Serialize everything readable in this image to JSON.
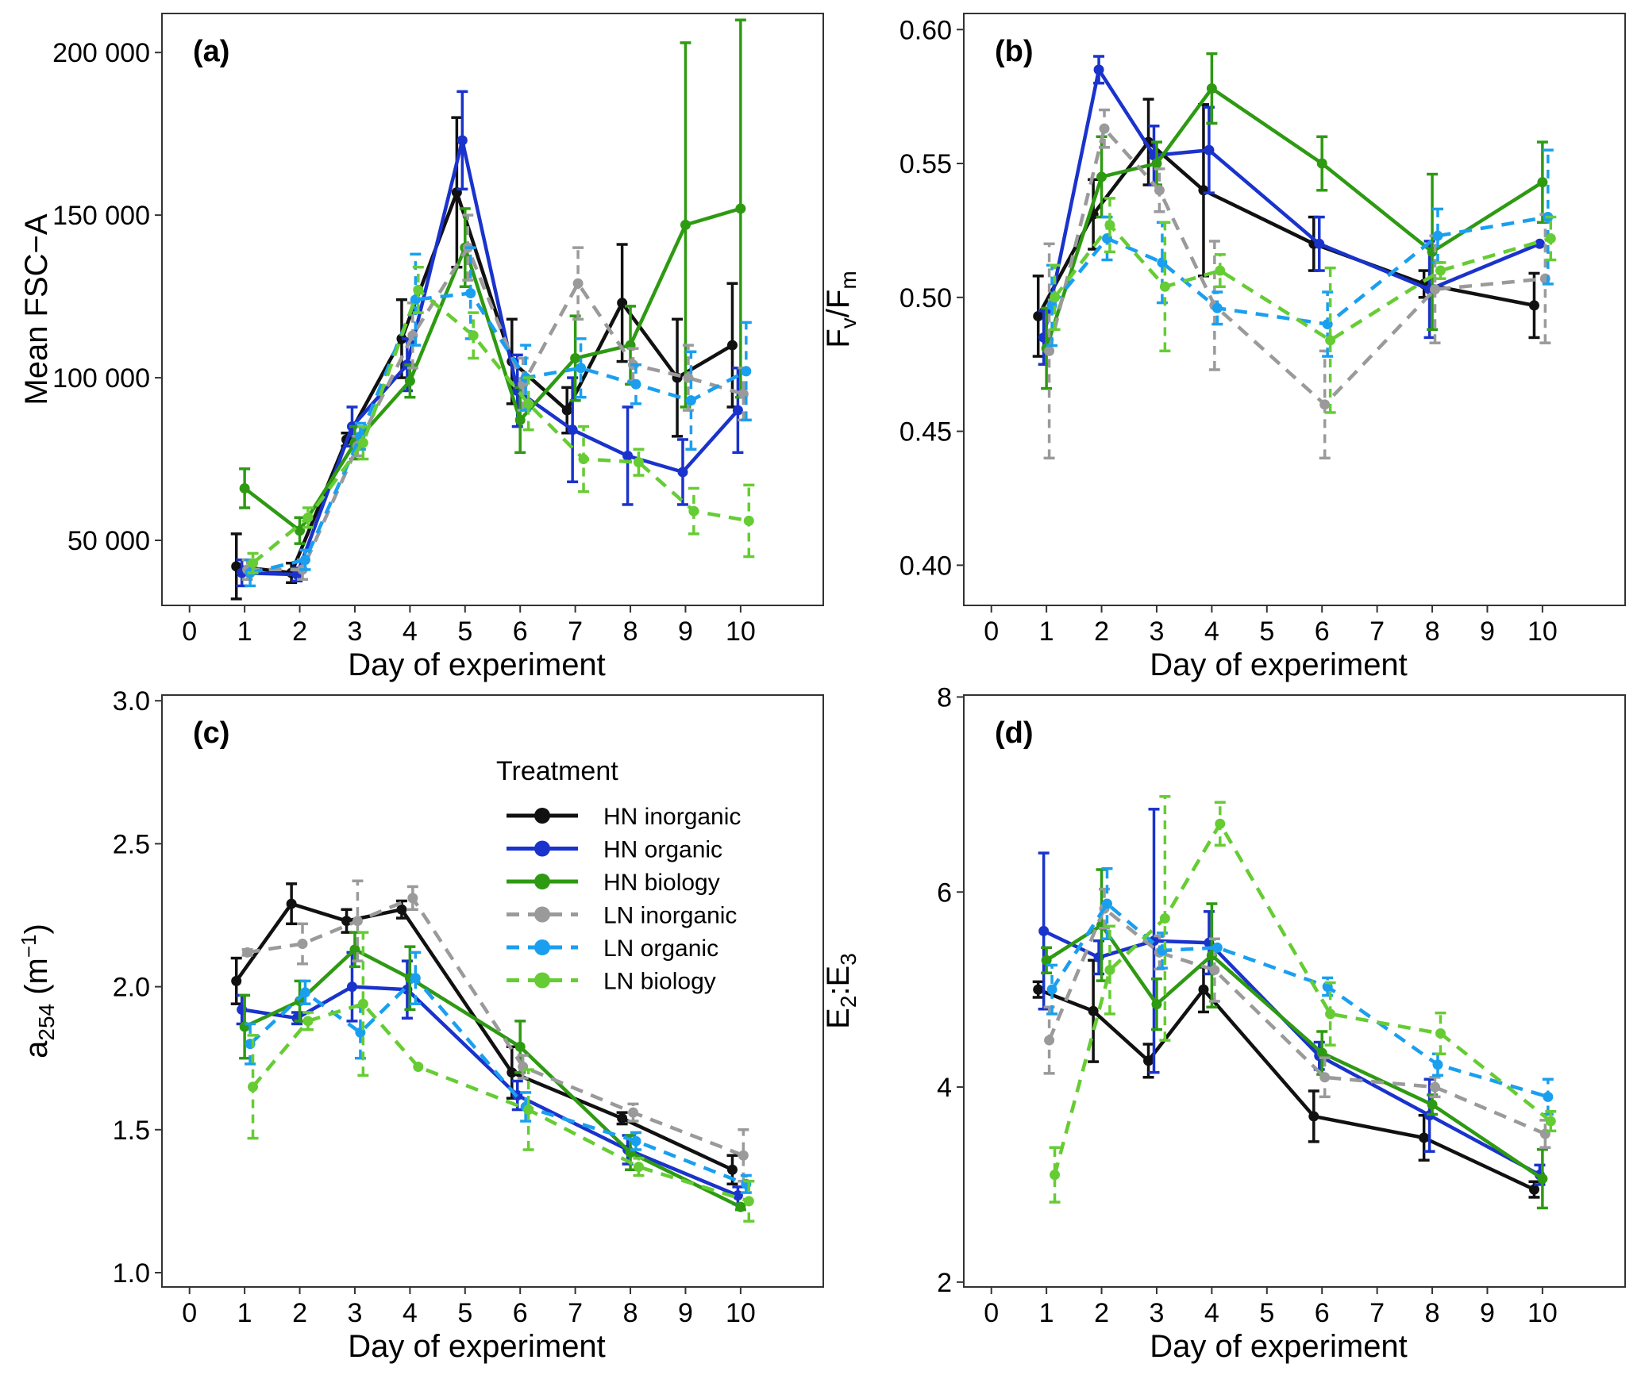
{
  "chart_data": [
    {
      "type": "line",
      "panel_label": "(a)",
      "xlabel": "Day of experiment",
      "ylabel": "Mean FSC−A",
      "xlim": [
        -0.5,
        11.5
      ],
      "ylim": [
        30000,
        212000
      ],
      "xticks": [
        0,
        1,
        2,
        3,
        4,
        5,
        6,
        7,
        8,
        9,
        10
      ],
      "yticks": [
        50000,
        100000,
        150000,
        200000
      ],
      "ytick_labels": [
        "50 000",
        "100 000",
        "150 000",
        "200 000"
      ],
      "series": [
        {
          "name": "HN inorganic",
          "x": [
            0.85,
            1.85,
            2.85,
            3.85,
            4.85,
            5.85,
            6.85,
            7.85,
            8.85,
            9.85
          ],
          "y": [
            42000,
            40000,
            81000,
            112000,
            157000,
            105000,
            90000,
            123000,
            100000,
            110000
          ],
          "err": [
            10000,
            3000,
            2000,
            12000,
            23000,
            13000,
            7000,
            18000,
            18000,
            19000
          ]
        },
        {
          "name": "HN organic",
          "x": [
            0.95,
            1.95,
            2.95,
            3.95,
            4.95,
            5.95,
            6.95,
            7.95,
            8.95,
            9.95
          ],
          "y": [
            40000,
            39500,
            85000,
            104000,
            173000,
            96000,
            84000,
            76000,
            71000,
            90000
          ],
          "err": [
            4000,
            2000,
            6000,
            8000,
            15000,
            11000,
            16000,
            15000,
            10000,
            13000
          ]
        },
        {
          "name": "HN biology",
          "x": [
            1.0,
            2.0,
            3.0,
            4.0,
            5.0,
            6.0,
            7.0,
            8.0,
            9.0,
            10.0
          ],
          "y": [
            66000,
            53000,
            80000,
            99000,
            140000,
            87000,
            106000,
            110000,
            147000,
            152000
          ],
          "err": [
            6000,
            4000,
            5000,
            5000,
            12000,
            10000,
            13000,
            12000,
            56000,
            58000
          ]
        },
        {
          "name": "LN inorganic",
          "x": [
            1.05,
            2.05,
            3.05,
            4.05,
            5.05,
            6.05,
            7.05,
            8.05,
            9.05,
            10.05
          ],
          "y": [
            41000,
            41000,
            79000,
            113000,
            140000,
            98000,
            129000,
            104000,
            100000,
            95000
          ],
          "err": [
            3000,
            3000,
            3000,
            10000,
            10000,
            8000,
            11000,
            5000,
            10000,
            8000
          ]
        },
        {
          "name": "LN organic",
          "x": [
            1.1,
            2.1,
            3.1,
            4.1,
            5.1,
            6.1,
            7.1,
            8.1,
            9.1,
            10.1
          ],
          "y": [
            40000,
            44000,
            82000,
            124000,
            126000,
            100000,
            103000,
            98000,
            93000,
            102000
          ],
          "err": [
            4000,
            3000,
            4000,
            14000,
            14000,
            10000,
            9000,
            6000,
            15000,
            15000
          ]
        },
        {
          "name": "LN biology",
          "x": [
            1.15,
            2.15,
            3.15,
            4.15,
            5.15,
            6.15,
            7.15,
            8.15,
            9.15,
            10.15
          ],
          "y": [
            43000,
            57000,
            80000,
            127000,
            113000,
            92000,
            75000,
            74000,
            59000,
            56000
          ],
          "err": [
            3000,
            3000,
            5000,
            7000,
            7000,
            8000,
            10000,
            4000,
            7000,
            11000
          ]
        }
      ]
    },
    {
      "type": "line",
      "panel_label": "(b)",
      "xlabel": "Day of experiment",
      "ylabel": "Fv/Fm",
      "xlim": [
        -0.5,
        11.5
      ],
      "ylim": [
        0.385,
        0.606
      ],
      "xticks": [
        0,
        1,
        2,
        3,
        4,
        5,
        6,
        7,
        8,
        9,
        10
      ],
      "yticks": [
        0.4,
        0.45,
        0.5,
        0.55,
        0.6
      ],
      "ytick_labels": [
        "0.40",
        "0.45",
        "0.50",
        "0.55",
        "0.60"
      ],
      "series": [
        {
          "name": "HN inorganic",
          "x": [
            0.85,
            1.85,
            2.85,
            3.85,
            5.85,
            7.85,
            9.85
          ],
          "y": [
            0.493,
            0.531,
            0.558,
            0.54,
            0.52,
            0.505,
            0.497
          ],
          "err": [
            0.015,
            0.013,
            0.016,
            0.032,
            0.01,
            0.005,
            0.012
          ]
        },
        {
          "name": "HN organic",
          "x": [
            0.95,
            1.95,
            2.95,
            3.95,
            5.95,
            7.95,
            9.95
          ],
          "y": [
            0.485,
            0.585,
            0.553,
            0.555,
            0.52,
            0.503,
            0.52
          ],
          "err": [
            0.01,
            0.005,
            0.011,
            0.016,
            0.01,
            0.018,
            0.0
          ]
        },
        {
          "name": "HN biology",
          "x": [
            1.0,
            2.0,
            3.0,
            4.0,
            6.0,
            8.0,
            10.0
          ],
          "y": [
            0.481,
            0.545,
            0.55,
            0.578,
            0.55,
            0.517,
            0.543
          ],
          "err": [
            0.015,
            0.015,
            0.008,
            0.013,
            0.01,
            0.029,
            0.015
          ]
        },
        {
          "name": "LN inorganic",
          "x": [
            1.05,
            2.05,
            3.05,
            4.05,
            6.05,
            8.05,
            10.05
          ],
          "y": [
            0.48,
            0.563,
            0.54,
            0.497,
            0.46,
            0.503,
            0.507
          ],
          "err": [
            0.04,
            0.007,
            0.008,
            0.024,
            0.02,
            0.02,
            0.024
          ]
        },
        {
          "name": "LN organic",
          "x": [
            1.1,
            2.1,
            3.1,
            4.1,
            6.1,
            8.1,
            10.1
          ],
          "y": [
            0.497,
            0.522,
            0.513,
            0.496,
            0.49,
            0.523,
            0.53
          ],
          "err": [
            0.015,
            0.008,
            0.015,
            0.006,
            0.012,
            0.01,
            0.025
          ]
        },
        {
          "name": "LN biology",
          "x": [
            1.15,
            2.15,
            3.15,
            4.15,
            6.15,
            8.15,
            10.15
          ],
          "y": [
            0.5,
            0.527,
            0.504,
            0.51,
            0.484,
            0.51,
            0.522
          ],
          "err": [
            0.012,
            0.01,
            0.024,
            0.006,
            0.027,
            0.003,
            0.008
          ]
        }
      ]
    },
    {
      "type": "line",
      "panel_label": "(c)",
      "xlabel": "Day of experiment",
      "ylabel": "a254 (m−1)",
      "xlim": [
        -0.5,
        11.5
      ],
      "ylim": [
        0.95,
        3.02
      ],
      "xticks": [
        0,
        1,
        2,
        3,
        4,
        5,
        6,
        7,
        8,
        9,
        10
      ],
      "yticks": [
        1.0,
        1.5,
        2.0,
        2.5,
        3.0
      ],
      "ytick_labels": [
        "1.0",
        "1.5",
        "2.0",
        "2.5",
        "3.0"
      ],
      "series": [
        {
          "name": "HN inorganic",
          "x": [
            0.85,
            1.85,
            2.85,
            3.85,
            5.85,
            7.85,
            9.85
          ],
          "y": [
            2.02,
            2.29,
            2.23,
            2.27,
            1.7,
            1.54,
            1.36
          ],
          "err": [
            0.08,
            0.07,
            0.04,
            0.03,
            0.09,
            0.02,
            0.05
          ]
        },
        {
          "name": "HN organic",
          "x": [
            0.95,
            1.95,
            2.95,
            3.95,
            5.95,
            7.95,
            9.95
          ],
          "y": [
            1.92,
            1.89,
            2.0,
            1.99,
            1.62,
            1.43,
            1.27
          ],
          "err": [
            0.05,
            0.02,
            0.12,
            0.1,
            0.05,
            0.05,
            0.03
          ]
        },
        {
          "name": "HN biology",
          "x": [
            1.0,
            2.0,
            3.0,
            4.0,
            6.0,
            8.0,
            10.0
          ],
          "y": [
            1.86,
            1.95,
            2.13,
            2.03,
            1.79,
            1.42,
            1.23
          ],
          "err": [
            0.11,
            0.07,
            0.06,
            0.11,
            0.09,
            0.06,
            0.01
          ]
        },
        {
          "name": "LN inorganic",
          "x": [
            1.05,
            2.05,
            3.05,
            4.05,
            6.05,
            8.05,
            10.05
          ],
          "y": [
            2.12,
            2.15,
            2.23,
            2.31,
            1.72,
            1.56,
            1.41
          ],
          "err": [
            0.01,
            0.07,
            0.14,
            0.04,
            0.04,
            0.03,
            0.09
          ]
        },
        {
          "name": "LN organic",
          "x": [
            1.1,
            2.1,
            3.1,
            4.1,
            6.1,
            8.1,
            10.1
          ],
          "y": [
            1.8,
            1.98,
            1.84,
            2.03,
            1.58,
            1.46,
            1.31
          ],
          "err": [
            0.07,
            0.04,
            0.09,
            0.09,
            0.05,
            0.03,
            0.03
          ]
        },
        {
          "name": "LN biology",
          "x": [
            1.15,
            2.15,
            3.15,
            4.15,
            6.15,
            8.15,
            10.15
          ],
          "y": [
            1.65,
            1.88,
            1.94,
            1.72,
            1.57,
            1.37,
            1.25
          ],
          "err": [
            0.18,
            0.03,
            0.25,
            0.0,
            0.14,
            0.03,
            0.07
          ]
        }
      ]
    },
    {
      "type": "line",
      "panel_label": "(d)",
      "xlabel": "Day of experiment",
      "ylabel": "E2:E3",
      "xlim": [
        -0.5,
        11.5
      ],
      "ylim": [
        1.95,
        8.02
      ],
      "xticks": [
        0,
        1,
        2,
        3,
        4,
        5,
        6,
        7,
        8,
        9,
        10
      ],
      "yticks": [
        2,
        4,
        6,
        8
      ],
      "ytick_labels": [
        "2",
        "4",
        "6",
        "8"
      ],
      "series": [
        {
          "name": "HN inorganic",
          "x": [
            0.85,
            1.85,
            2.85,
            3.85,
            5.85,
            7.85,
            9.85
          ],
          "y": [
            5.0,
            4.78,
            4.27,
            5.0,
            3.7,
            3.48,
            2.95
          ],
          "err": [
            0.08,
            0.52,
            0.17,
            0.23,
            0.26,
            0.23,
            0.08
          ]
        },
        {
          "name": "HN organic",
          "x": [
            0.95,
            1.95,
            2.95,
            3.95,
            5.95,
            7.95,
            9.95
          ],
          "y": [
            5.6,
            5.33,
            5.5,
            5.48,
            4.32,
            3.71,
            3.1
          ],
          "err": [
            0.8,
            0.17,
            1.35,
            0.32,
            0.14,
            0.37,
            0.1
          ]
        },
        {
          "name": "HN biology",
          "x": [
            1.0,
            2.0,
            3.0,
            4.0,
            6.0,
            8.0,
            10.0
          ],
          "y": [
            5.3,
            5.66,
            4.85,
            5.35,
            4.35,
            3.82,
            3.06
          ],
          "err": [
            0.13,
            0.57,
            0.26,
            0.53,
            0.22,
            0.1,
            0.3
          ]
        },
        {
          "name": "LN inorganic",
          "x": [
            1.05,
            2.05,
            3.05,
            4.05,
            6.05,
            8.05,
            10.05
          ],
          "y": [
            4.48,
            5.83,
            5.38,
            5.2,
            4.1,
            4.0,
            3.52
          ],
          "err": [
            0.34,
            0.2,
            0.17,
            0.32,
            0.2,
            0.1,
            0.14
          ]
        },
        {
          "name": "LN organic",
          "x": [
            1.1,
            2.1,
            3.1,
            4.1,
            6.1,
            8.1,
            10.1
          ],
          "y": [
            5.0,
            5.88,
            5.4,
            5.43,
            5.03,
            4.23,
            3.9
          ],
          "err": [
            0.25,
            0.36,
            0.18,
            0.0,
            0.09,
            0.11,
            0.18
          ]
        },
        {
          "name": "LN biology",
          "x": [
            1.15,
            2.15,
            3.15,
            4.15,
            6.15,
            8.15,
            10.15
          ],
          "y": [
            3.1,
            5.2,
            5.73,
            6.7,
            4.75,
            4.55,
            3.65
          ],
          "err": [
            0.28,
            0.45,
            1.25,
            0.22,
            0.32,
            0.21,
            0.1
          ]
        }
      ]
    }
  ],
  "legend": {
    "title": "Treatment",
    "placement": "inside panel (c), upper-right",
    "items": [
      {
        "label": "HN inorganic",
        "color": "#111111",
        "dashed": false
      },
      {
        "label": "HN organic",
        "color": "#1a33cc",
        "dashed": false
      },
      {
        "label": "HN biology",
        "color": "#2e9a12",
        "dashed": false
      },
      {
        "label": "LN inorganic",
        "color": "#9a9a9a",
        "dashed": true
      },
      {
        "label": "LN organic",
        "color": "#1a9ff0",
        "dashed": true
      },
      {
        "label": "LN biology",
        "color": "#66cc33",
        "dashed": true
      }
    ]
  },
  "series_colors": {
    "HN inorganic": "#111111",
    "HN organic": "#1a33cc",
    "HN biology": "#2e9a12",
    "LN inorganic": "#9a9a9a",
    "LN organic": "#1a9ff0",
    "LN biology": "#66cc33"
  }
}
